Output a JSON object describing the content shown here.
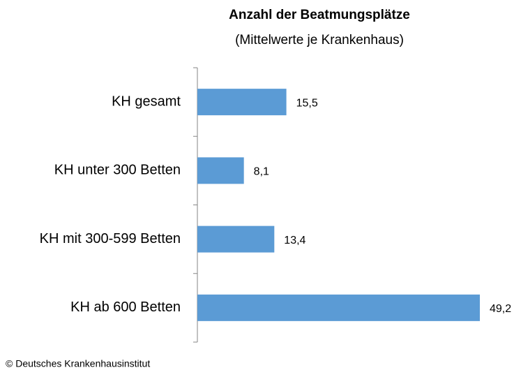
{
  "chart_data": {
    "type": "bar",
    "orientation": "horizontal",
    "title": "Anzahl der Beatmungsplätze",
    "subtitle": "(Mittelwerte je Krankenhaus)",
    "categories": [
      "KH gesamt",
      "KH unter 300 Betten",
      "KH mit 300-599 Betten",
      "KH ab 600 Betten"
    ],
    "values": [
      15.5,
      8.1,
      13.4,
      49.2
    ],
    "value_labels": [
      "15,5",
      "8,1",
      "13,4",
      "49,2"
    ],
    "color": "#5b9bd5",
    "source": "© Deutsches Krankenhausinstitut"
  }
}
